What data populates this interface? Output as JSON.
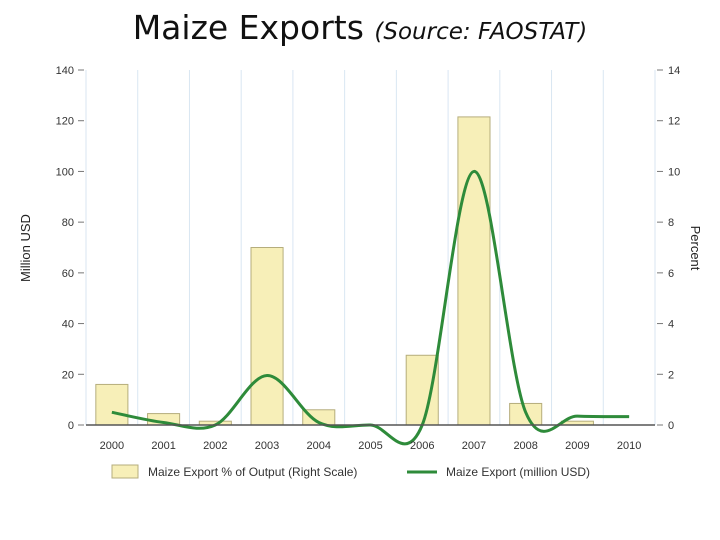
{
  "title": {
    "main": "Maize Exports",
    "source": "(Source: FAOSTAT)"
  },
  "chart_data": {
    "type": "bar+line",
    "categories": [
      "2000",
      "2001",
      "2002",
      "2003",
      "2004",
      "2005",
      "2006",
      "2007",
      "2008",
      "2009",
      "2010"
    ],
    "series": [
      {
        "name": "Maize Export % of Output (Right Scale)",
        "type": "bar",
        "axis": "right",
        "color": "#f7efb8",
        "stroke": "#b5ad7c",
        "values": [
          1.6,
          0.45,
          0.15,
          7.0,
          0.6,
          0.0,
          2.75,
          12.15,
          0.85,
          0.15,
          0.0
        ]
      },
      {
        "name": "Maize Export (million USD)",
        "type": "line",
        "axis": "left",
        "color": "#2e8b3a",
        "values": [
          5,
          1,
          0,
          19.5,
          1,
          0,
          0,
          100,
          5,
          3.5,
          3.3
        ]
      }
    ],
    "y_left": {
      "label": "Million USD",
      "ticks": [
        "0",
        "20",
        "40",
        "60",
        "80",
        "100",
        "120",
        "140"
      ],
      "range": [
        0,
        140
      ]
    },
    "y_right": {
      "label": "Percent",
      "ticks": [
        "0",
        "2",
        "4",
        "6",
        "8",
        "10",
        "12",
        "14"
      ],
      "range": [
        0,
        14
      ]
    },
    "grid": "vertical",
    "legend": "bottom"
  }
}
